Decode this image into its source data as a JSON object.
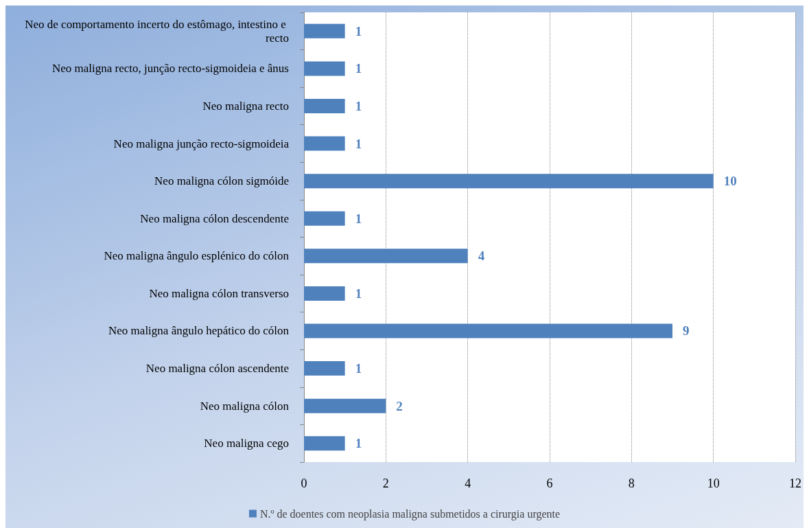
{
  "chart_data": {
    "type": "bar",
    "orientation": "horizontal",
    "categories": [
      "Neo de comportamento incerto do estômago, intestino e recto",
      "Neo maligna recto, junção recto-sigmoideia e ânus",
      "Neo maligna recto",
      "Neo maligna junção recto-sigmoideia",
      "Neo maligna cólon sigmóide",
      "Neo maligna cólon descendente",
      "Neo maligna ângulo esplénico do cólon",
      "Neo maligna cólon transverso",
      "Neo maligna ângulo hepático do cólon",
      "Neo maligna cólon ascendente",
      "Neo maligna cólon",
      "Neo maligna cego"
    ],
    "series": [
      {
        "name": "N.º de doentes com neoplasia maligna submetidos a cirurgia urgente",
        "color": "#4f81bd",
        "values": [
          1,
          1,
          1,
          1,
          10,
          1,
          4,
          1,
          9,
          1,
          2,
          1
        ]
      }
    ],
    "xlim": [
      0,
      12
    ],
    "xticks": [
      0,
      2,
      4,
      6,
      8,
      10,
      12
    ],
    "grid": "x",
    "legend": "bottom",
    "data_labels": true
  }
}
